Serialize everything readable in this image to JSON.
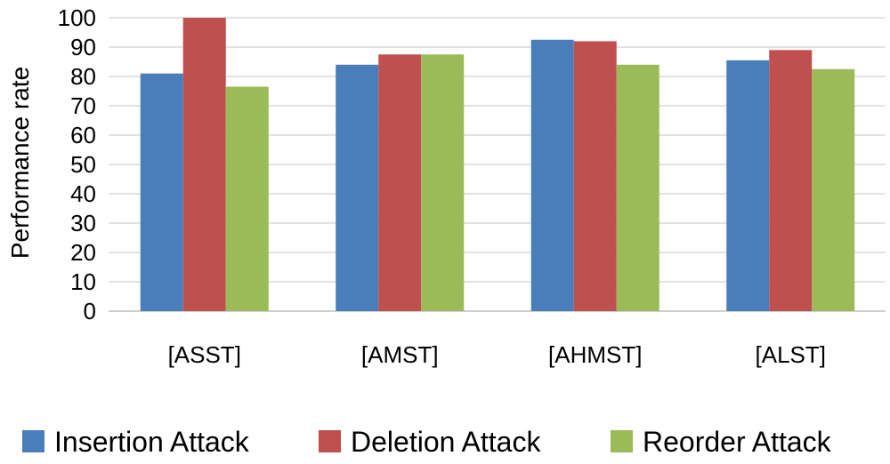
{
  "chart_data": {
    "type": "bar",
    "title": "",
    "xlabel": "",
    "ylabel": "Performance rate",
    "ylim": [
      0,
      100
    ],
    "yticks": [
      0,
      10,
      20,
      30,
      40,
      50,
      60,
      70,
      80,
      90,
      100
    ],
    "grid": true,
    "legend_position": "bottom",
    "categories": [
      "[ASST]",
      "[AMST]",
      "[AHMST]",
      "[ALST]"
    ],
    "series": [
      {
        "name": "Insertion Attack",
        "color": "#4A7EBB",
        "values": [
          81,
          84,
          92.5,
          85.5
        ]
      },
      {
        "name": "Deletion Attack",
        "color": "#C0504D",
        "values": [
          100,
          87.5,
          92,
          89
        ]
      },
      {
        "name": "Reorder Attack",
        "color": "#9BBB59",
        "values": [
          76.5,
          87.5,
          84,
          82.5
        ]
      }
    ]
  }
}
